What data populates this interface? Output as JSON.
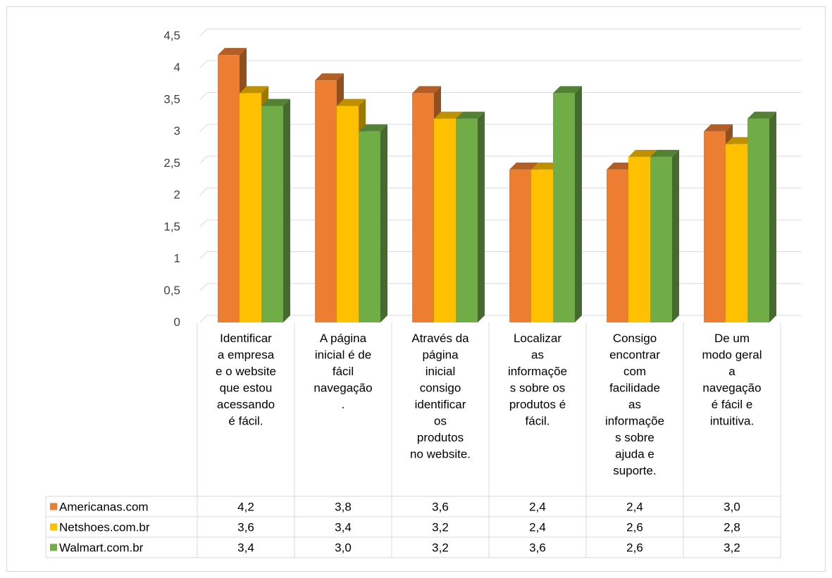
{
  "chart_data": {
    "type": "bar",
    "title": "",
    "xlabel": "",
    "ylabel": "",
    "ylim": [
      0,
      4.5
    ],
    "y_ticks": [
      "0",
      "0,5",
      "1",
      "1,5",
      "2",
      "2,5",
      "3",
      "3,5",
      "4",
      "4,5"
    ],
    "grid": true,
    "three_d": true,
    "legend_placement": "data-table-left",
    "categories": [
      [
        "Identificar",
        "a empresa",
        "e o website",
        "que estou",
        "acessando",
        "é fácil."
      ],
      [
        "A página",
        "inicial é de",
        "fácil",
        "navegação",
        "."
      ],
      [
        "Através da",
        "página",
        "inicial",
        "consigo",
        "identificar",
        "os",
        "produtos",
        "no website."
      ],
      [
        "Localizar",
        "as",
        "informaçõe",
        "s sobre os",
        "produtos é",
        "fácil."
      ],
      [
        "Consigo",
        "encontrar",
        "com",
        "facilidade",
        "as",
        "informaçõe",
        "s sobre",
        "ajuda e",
        "suporte."
      ],
      [
        "De um",
        "modo geral",
        "a",
        "navegação",
        "é fácil e",
        "intuitiva."
      ]
    ],
    "series": [
      {
        "name": "Americanas.com",
        "color": "#ED7D31",
        "values": [
          4.2,
          3.8,
          3.6,
          2.4,
          2.4,
          3.0
        ],
        "labels": [
          "4,2",
          "3,8",
          "3,6",
          "2,4",
          "2,4",
          "3,0"
        ]
      },
      {
        "name": "Netshoes.com.br",
        "color": "#FFC000",
        "values": [
          3.6,
          3.4,
          3.2,
          2.4,
          2.6,
          2.8
        ],
        "labels": [
          "3,6",
          "3,4",
          "3,2",
          "2,4",
          "2,6",
          "2,8"
        ]
      },
      {
        "name": "Walmart.com.br",
        "color": "#70AD47",
        "values": [
          3.4,
          3.0,
          3.2,
          3.6,
          2.6,
          3.2
        ],
        "labels": [
          "3,4",
          "3,0",
          "3,2",
          "3,6",
          "2,6",
          "3,2"
        ]
      }
    ]
  }
}
